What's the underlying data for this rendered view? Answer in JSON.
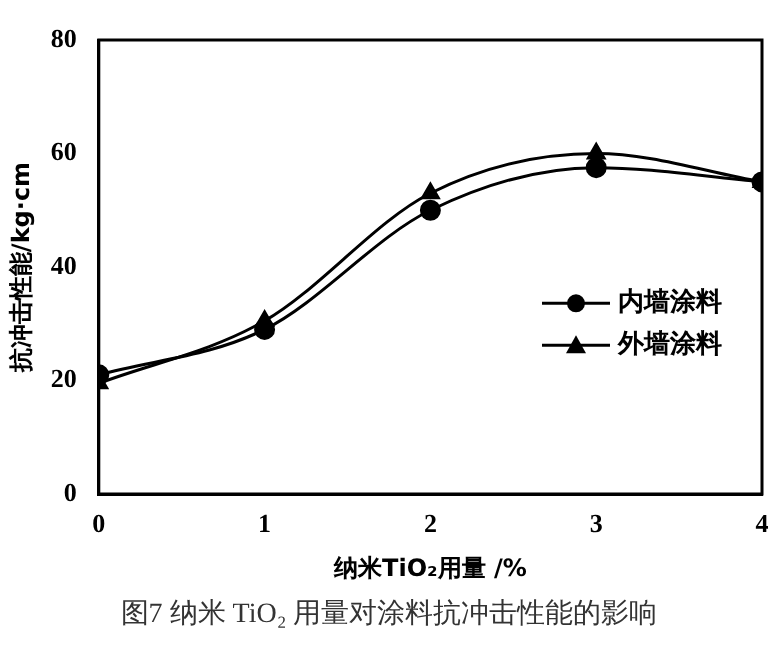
{
  "chart_data": {
    "type": "line",
    "xlabel": "纳米TiO₂用量 /%",
    "ylabel": "抗冲击性能/kg·cm",
    "x": [
      0,
      1,
      2,
      3,
      4
    ],
    "xlim": [
      0,
      4
    ],
    "xticks": [
      0,
      1,
      2,
      3,
      4
    ],
    "ylim": [
      0,
      80
    ],
    "yticks": [
      0,
      20,
      40,
      60,
      80
    ],
    "grid": false,
    "legend": "right",
    "line_style": "solid",
    "series": [
      {
        "name": "内墙涂料",
        "color": "#000000",
        "marker": "circle",
        "values": [
          21,
          29,
          50,
          57.5,
          55
        ]
      },
      {
        "name": "外墙涂料",
        "color": "#000000",
        "marker": "triangle",
        "values": [
          19.5,
          30.5,
          53,
          60,
          55
        ]
      }
    ],
    "annotations": [
      "图7  纳米 TiO₂ 用量对涂料抗冲击性能的影响"
    ]
  }
}
